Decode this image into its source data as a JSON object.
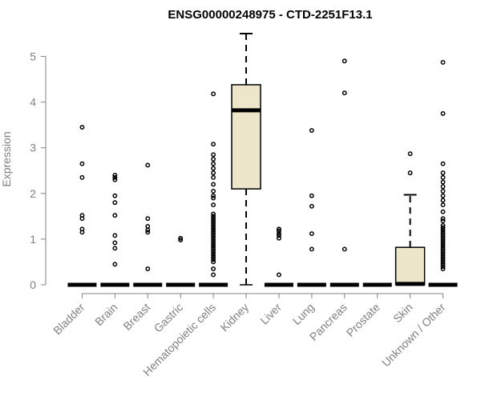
{
  "chart_data": {
    "type": "box",
    "title": "ENSG00000248975 - CTD-2251F13.1",
    "xlabel": "",
    "ylabel": "Expression",
    "ylim": [
      0,
      5.5
    ],
    "yticks": [
      0,
      1,
      2,
      3,
      4,
      5
    ],
    "colors": {
      "box_fill": "#ede6cb",
      "box_line": "#000000",
      "axis": "#808080"
    },
    "categories": [
      "Bladder",
      "Brain",
      "Breast",
      "Gastric",
      "Hematopoietic cells",
      "Kidney",
      "Liver",
      "Lung",
      "Pancreas",
      "Prostate",
      "Skin",
      "Unknown / Other"
    ],
    "boxes": [
      {
        "category": "Bladder",
        "min": 0,
        "q1": 0,
        "median": 0,
        "q3": 0,
        "max": 0,
        "outliers": [
          1.15,
          1.22,
          1.45,
          1.52,
          2.35,
          2.65,
          3.45
        ]
      },
      {
        "category": "Brain",
        "min": 0,
        "q1": 0,
        "median": 0,
        "q3": 0,
        "max": 0,
        "outliers": [
          0.45,
          0.8,
          0.92,
          1.08,
          1.52,
          1.8,
          1.95,
          2.3,
          2.35,
          2.4
        ]
      },
      {
        "category": "Breast",
        "min": 0,
        "q1": 0,
        "median": 0,
        "q3": 0,
        "max": 0,
        "outliers": [
          0.35,
          1.15,
          1.2,
          1.28,
          1.45,
          2.62
        ]
      },
      {
        "category": "Gastric",
        "min": 0,
        "q1": 0,
        "median": 0,
        "q3": 0,
        "max": 0,
        "outliers": [
          0.98,
          1.02
        ]
      },
      {
        "category": "Hematopoietic cells",
        "min": 0,
        "q1": 0,
        "median": 0,
        "q3": 0,
        "max": 0,
        "outliers": [
          0.22,
          0.35,
          0.5,
          0.55,
          0.6,
          0.65,
          0.7,
          0.75,
          0.8,
          0.85,
          0.9,
          0.95,
          1.0,
          1.05,
          1.1,
          1.15,
          1.2,
          1.25,
          1.3,
          1.35,
          1.4,
          1.45,
          1.5,
          1.55,
          1.75,
          1.9,
          1.95,
          2.05,
          2.2,
          2.35,
          2.45,
          2.55,
          2.65,
          2.75,
          2.85,
          3.08,
          4.18
        ]
      },
      {
        "category": "Kidney",
        "min": 0,
        "q1": 2.1,
        "median": 3.82,
        "q3": 4.38,
        "max": 5.5,
        "outliers": []
      },
      {
        "category": "Liver",
        "min": 0,
        "q1": 0,
        "median": 0,
        "q3": 0,
        "max": 0,
        "outliers": [
          0.22,
          1.02,
          1.08,
          1.12,
          1.18,
          1.22
        ]
      },
      {
        "category": "Lung",
        "min": 0,
        "q1": 0,
        "median": 0,
        "q3": 0,
        "max": 0,
        "outliers": [
          0.78,
          1.12,
          1.72,
          1.95,
          3.38
        ]
      },
      {
        "category": "Pancreas",
        "min": 0,
        "q1": 0,
        "median": 0,
        "q3": 0,
        "max": 0,
        "outliers": [
          0.78,
          4.2,
          4.9
        ]
      },
      {
        "category": "Prostate",
        "min": 0,
        "q1": 0,
        "median": 0,
        "q3": 0,
        "max": 0,
        "outliers": []
      },
      {
        "category": "Skin",
        "min": 0,
        "q1": 0,
        "median": 0.02,
        "q3": 0.82,
        "max": 1.97,
        "outliers": [
          2.45,
          2.87
        ]
      },
      {
        "category": "Unknown / Other",
        "min": 0,
        "q1": 0,
        "median": 0,
        "q3": 0,
        "max": 0,
        "outliers": [
          0.35,
          0.4,
          0.45,
          0.5,
          0.55,
          0.6,
          0.65,
          0.7,
          0.75,
          0.8,
          0.85,
          0.9,
          0.95,
          1.0,
          1.05,
          1.1,
          1.15,
          1.2,
          1.25,
          1.3,
          1.4,
          1.45,
          1.6,
          1.75,
          1.85,
          1.95,
          2.05,
          2.15,
          2.25,
          2.35,
          2.45,
          2.65,
          3.75,
          4.87
        ]
      }
    ]
  }
}
